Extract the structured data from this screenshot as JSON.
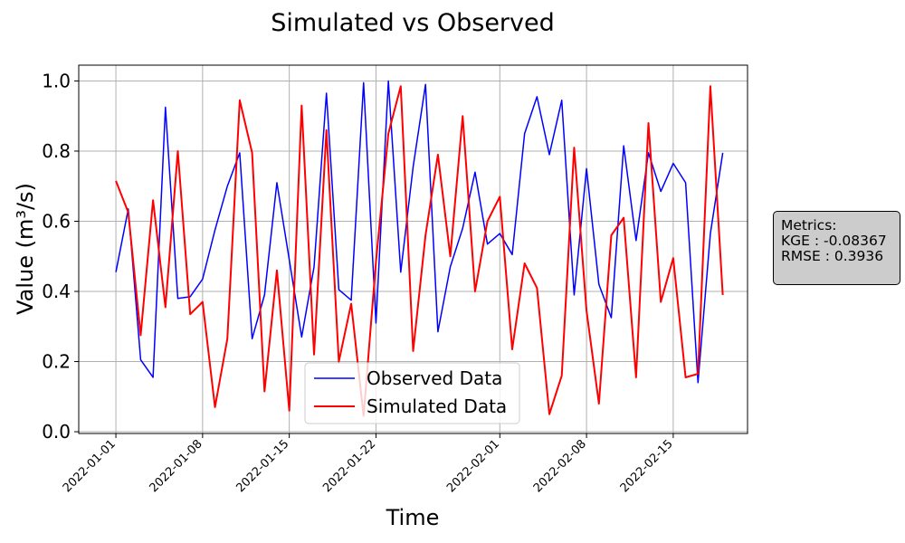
{
  "chart_data": {
    "type": "line",
    "title": "Simulated vs Observed",
    "xlabel": "Time",
    "ylabel": "Value (m³/s)",
    "x_start": "2022-01-01",
    "x_end": "2022-02-19",
    "xlim": [
      "2021-12-29",
      "2022-02-21"
    ],
    "ylim": [
      -0.005,
      1.045
    ],
    "xticks": [
      {
        "date": "2022-01-01",
        "label": "2022-01-01"
      },
      {
        "date": "2022-01-08",
        "label": "2022-01-08"
      },
      {
        "date": "2022-01-15",
        "label": "2022-01-15"
      },
      {
        "date": "2022-01-22",
        "label": "2022-01-22"
      },
      {
        "date": "2022-02-01",
        "label": "2022-02-01"
      },
      {
        "date": "2022-02-08",
        "label": "2022-02-08"
      },
      {
        "date": "2022-02-15",
        "label": "2022-02-15"
      }
    ],
    "yticks": [
      0.0,
      0.2,
      0.4,
      0.6,
      0.8,
      1.0
    ],
    "ytick_labels": [
      "0.0",
      "0.2",
      "0.4",
      "0.6",
      "0.8",
      "1.0"
    ],
    "grid": true,
    "legend_position": "lower center",
    "series": [
      {
        "name": "Observed Data",
        "color": "#0000ff",
        "values": [
          0.455,
          0.635,
          0.205,
          0.155,
          0.925,
          0.38,
          0.385,
          0.435,
          0.575,
          0.7,
          0.795,
          0.265,
          0.39,
          0.71,
          0.49,
          0.27,
          0.47,
          0.965,
          0.405,
          0.375,
          0.995,
          0.31,
          1.0,
          0.455,
          0.755,
          0.99,
          0.285,
          0.47,
          0.58,
          0.74,
          0.535,
          0.565,
          0.505,
          0.85,
          0.955,
          0.79,
          0.945,
          0.39,
          0.75,
          0.42,
          0.325,
          0.815,
          0.545,
          0.795,
          0.685,
          0.765,
          0.71,
          0.14,
          0.565,
          0.795
        ]
      },
      {
        "name": "Simulated Data",
        "color": "#ff0000",
        "values": [
          0.715,
          0.625,
          0.275,
          0.66,
          0.355,
          0.8,
          0.335,
          0.37,
          0.07,
          0.265,
          0.945,
          0.795,
          0.115,
          0.46,
          0.06,
          0.93,
          0.22,
          0.86,
          0.2,
          0.365,
          0.045,
          0.485,
          0.85,
          0.985,
          0.23,
          0.56,
          0.79,
          0.5,
          0.9,
          0.4,
          0.6,
          0.67,
          0.235,
          0.48,
          0.41,
          0.05,
          0.16,
          0.81,
          0.345,
          0.08,
          0.56,
          0.61,
          0.155,
          0.88,
          0.37,
          0.495,
          0.155,
          0.165,
          0.985,
          0.39
        ]
      }
    ]
  },
  "metrics": {
    "heading": "Metrics:",
    "kge": "KGE : -0.08367",
    "rmse": "RMSE : 0.3936"
  },
  "colors": {
    "grid": "#b0b0b0",
    "box_fill": "#cccccc"
  }
}
